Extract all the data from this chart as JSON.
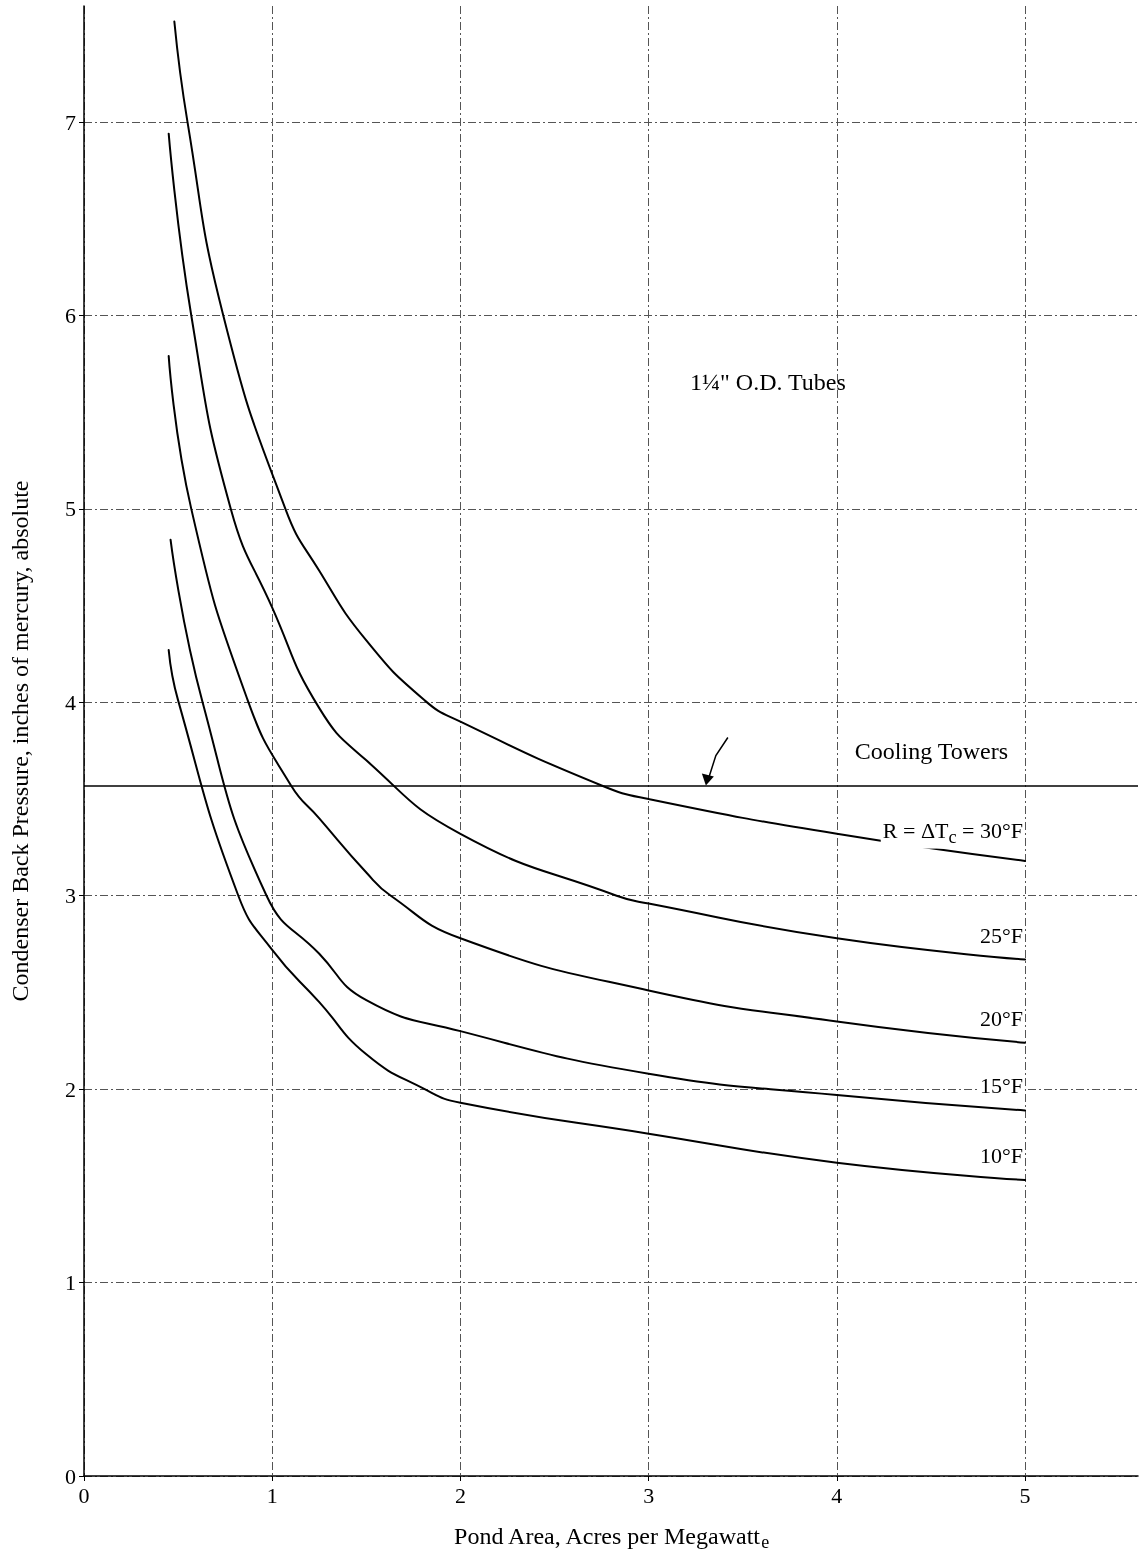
{
  "chart_data": {
    "type": "line",
    "xlabel": "Pond Area, Acres per Megawatt$_{e}$",
    "ylabel": "Condenser Back Pressure, inches of mercury, absolute",
    "xlim": [
      0,
      5.6
    ],
    "xticks": [
      0,
      1,
      2,
      3,
      4,
      5
    ],
    "ylim": [
      0,
      7.6
    ],
    "yticks": [
      0,
      1,
      2,
      3,
      4,
      5,
      6,
      7
    ],
    "grid": true,
    "marker": "none",
    "line_style": "solid",
    "annotations": [
      "1¼\" O.D. Tubes"
    ],
    "ref_lines": [
      {
        "axis": "y",
        "value": 3.57,
        "label": "Cooling Towers",
        "color": "#000000"
      }
    ],
    "series": [
      {
        "name": "R = ΔT$_{c}$ = 30°F",
        "color": "#000000",
        "x": [
          0.48,
          0.55,
          0.74,
          1.07,
          1.25,
          1.5,
          1.81,
          2,
          2.75,
          3,
          4,
          5
        ],
        "values": [
          7.52,
          7,
          6,
          5,
          4.68,
          4.32,
          4.01,
          3.9,
          3.57,
          3.5,
          3.32,
          3.18
        ]
      },
      {
        "name": "25°F",
        "color": "#000000",
        "x": [
          0.45,
          0.57,
          0.78,
          1,
          1.25,
          1.5,
          2,
          2.83,
          3,
          4,
          5
        ],
        "values": [
          6.94,
          6,
          5,
          4.49,
          3.97,
          3.7,
          3.32,
          3.0,
          2.96,
          2.78,
          2.67
        ]
      },
      {
        "name": "20°F",
        "color": "#000000",
        "x": [
          0.45,
          0.57,
          0.87,
          1.1,
          1.25,
          1.5,
          1.63,
          2,
          3,
          4,
          5
        ],
        "values": [
          5.79,
          5,
          4.01,
          3.57,
          3.4,
          3.12,
          3.0,
          2.78,
          2.51,
          2.35,
          2.24
        ]
      },
      {
        "name": "15°F",
        "color": "#000000",
        "x": [
          0.46,
          0.63,
          0.97,
          1.25,
          1.5,
          2,
          3,
          4,
          5
        ],
        "values": [
          4.84,
          4.0,
          3.0,
          2.7,
          2.46,
          2.3,
          2.08,
          1.97,
          1.89
        ]
      },
      {
        "name": "10°F",
        "color": "#000000",
        "x": [
          0.45,
          0.5,
          0.82,
          1,
          1.25,
          1.5,
          1.81,
          2,
          3,
          4,
          5
        ],
        "values": [
          4.27,
          4.01,
          3.0,
          2.72,
          2.45,
          2.18,
          2.0,
          1.93,
          1.77,
          1.62,
          1.53
        ]
      }
    ]
  }
}
